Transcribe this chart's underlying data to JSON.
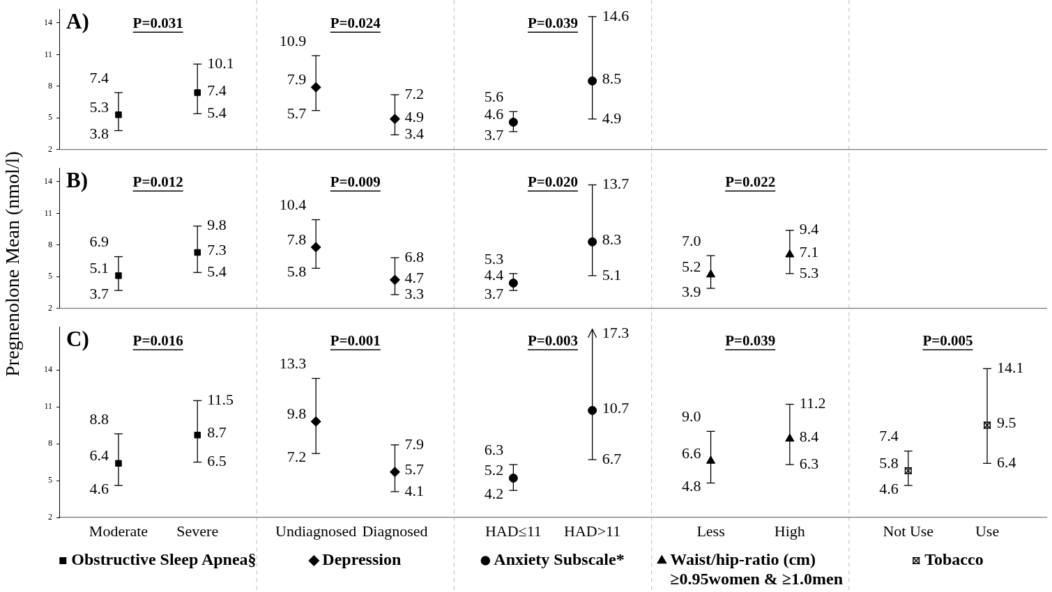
{
  "chart_data": [
    {
      "type": "scatter",
      "title": "A)",
      "categories": [
        "Moderate",
        "Severe",
        "Undiagnosed",
        "Diagnosed",
        "HAD≤11",
        "HAD>11"
      ],
      "ylim": [
        2,
        15.3
      ],
      "yticks": [
        2,
        5,
        8,
        11,
        14
      ],
      "tick_labels": "y",
      "data_labels": true,
      "annotations": [
        "P=0.031",
        "P=0.024",
        "P=0.039",
        "7.4",
        "3.8",
        "10.1",
        "5.4",
        "10.9",
        "5.7",
        "7.2",
        "3.4",
        "5.6",
        "3.7",
        "14.6",
        "4.9"
      ],
      "series": [
        {
          "color": "#000000",
          "marker": "square",
          "x": [
            "Moderate",
            "Severe"
          ],
          "values": [
            5.3,
            7.4
          ],
          "errors": [
            [
              3.8,
              7.4
            ],
            [
              5.4,
              10.1
            ]
          ]
        },
        {
          "color": "#000000",
          "marker": "diamond",
          "x": [
            "Undiagnosed",
            "Diagnosed"
          ],
          "values": [
            7.9,
            4.9
          ],
          "errors": [
            [
              5.7,
              10.9
            ],
            [
              3.4,
              7.2
            ]
          ]
        },
        {
          "color": "#000000",
          "marker": "circle",
          "x": [
            "HAD≤11",
            "HAD>11"
          ],
          "values": [
            4.6,
            8.5
          ],
          "errors": [
            [
              3.7,
              5.6
            ],
            [
              4.9,
              14.6
            ]
          ]
        }
      ]
    },
    {
      "type": "scatter",
      "title": "B)",
      "ylabel": "Pregnenolone Mean (nmol/l)",
      "categories": [
        "Moderate",
        "Severe",
        "Undiagnosed",
        "Diagnosed",
        "HAD≤11",
        "HAD>11",
        "Less",
        "High"
      ],
      "ylim": [
        2,
        15.3
      ],
      "yticks": [
        2,
        5,
        8,
        11,
        14
      ],
      "tick_labels": "y",
      "data_labels": true,
      "annotations": [
        "P=0.012",
        "P=0.009",
        "P=0.020",
        "P=0.022",
        "6.9",
        "3.7",
        "9.8",
        "5.4",
        "10.4",
        "5.8",
        "6.8",
        "3.3",
        "5.3",
        "3.7",
        "13.7",
        "5.1",
        "7.0",
        "3.9",
        "9.4",
        "5.3"
      ],
      "series": [
        {
          "color": "#000000",
          "marker": "square",
          "x": [
            "Moderate",
            "Severe"
          ],
          "values": [
            5.1,
            7.3
          ],
          "errors": [
            [
              3.7,
              6.9
            ],
            [
              5.4,
              9.8
            ]
          ]
        },
        {
          "color": "#000000",
          "marker": "diamond",
          "x": [
            "Undiagnosed",
            "Diagnosed"
          ],
          "values": [
            7.8,
            4.7
          ],
          "errors": [
            [
              5.8,
              10.4
            ],
            [
              3.3,
              6.8
            ]
          ]
        },
        {
          "color": "#000000",
          "marker": "circle",
          "x": [
            "HAD≤11",
            "HAD>11"
          ],
          "values": [
            4.4,
            8.3
          ],
          "errors": [
            [
              3.7,
              5.3
            ],
            [
              5.1,
              13.7
            ]
          ]
        },
        {
          "color": "#000000",
          "marker": "triangle",
          "x": [
            "Less",
            "High"
          ],
          "values": [
            5.2,
            7.1
          ],
          "errors": [
            [
              3.9,
              7.0
            ],
            [
              5.3,
              9.4
            ]
          ]
        }
      ]
    },
    {
      "type": "scatter",
      "title": "C)",
      "categories": [
        "Moderate",
        "Severe",
        "Undiagnosed",
        "Diagnosed",
        "HAD≤11",
        "HAD>11",
        "Less",
        "High",
        "Not Use",
        "Use"
      ],
      "ylim": [
        2,
        17.5
      ],
      "yticks": [
        2,
        5,
        8,
        11,
        14
      ],
      "data_labels": true,
      "legend": "bottom",
      "annotations": [
        "P=0.016",
        "P=0.001",
        "P=0.003",
        "P=0.039",
        "P=0.005",
        "8.8",
        "4.6",
        "11.5",
        "6.5",
        "13.3",
        "7.2",
        "7.9",
        "4.1",
        "6.3",
        "4.2",
        "17.3",
        "6.7",
        "9.0",
        "4.8",
        "11.2",
        "6.3",
        "7.4",
        "4.6",
        "14.1",
        "6.4"
      ],
      "series": [
        {
          "name": "Obstructive Sleep Apnea§",
          "color": "#000000",
          "marker": "square",
          "x": [
            "Moderate",
            "Severe"
          ],
          "values": [
            6.4,
            8.7
          ],
          "errors": [
            [
              4.6,
              8.8
            ],
            [
              6.5,
              11.5
            ]
          ]
        },
        {
          "name": "Depression",
          "color": "#000000",
          "marker": "diamond",
          "x": [
            "Undiagnosed",
            "Diagnosed"
          ],
          "values": [
            9.8,
            5.7
          ],
          "errors": [
            [
              7.2,
              13.3
            ],
            [
              4.1,
              7.9
            ]
          ]
        },
        {
          "name": "Anxiety Subscale*",
          "color": "#000000",
          "marker": "circle",
          "x": [
            "HAD≤11",
            "HAD>11"
          ],
          "values": [
            5.2,
            10.7
          ],
          "errors": [
            [
              4.2,
              6.3
            ],
            [
              6.7,
              17.3
            ]
          ]
        },
        {
          "name": "Waist/hip-ratio (cm) ≥0.95women & ≥1.0men",
          "color": "#000000",
          "marker": "triangle",
          "x": [
            "Less",
            "High"
          ],
          "values": [
            6.6,
            8.4
          ],
          "errors": [
            [
              4.8,
              9.0
            ],
            [
              6.3,
              11.2
            ]
          ]
        },
        {
          "name": "Tobacco",
          "color": "#000000",
          "marker": "cross",
          "x": [
            "Not Use",
            "Use"
          ],
          "values": [
            5.8,
            9.5
          ],
          "errors": [
            [
              4.6,
              7.4
            ],
            [
              6.4,
              14.1
            ]
          ]
        }
      ]
    }
  ]
}
